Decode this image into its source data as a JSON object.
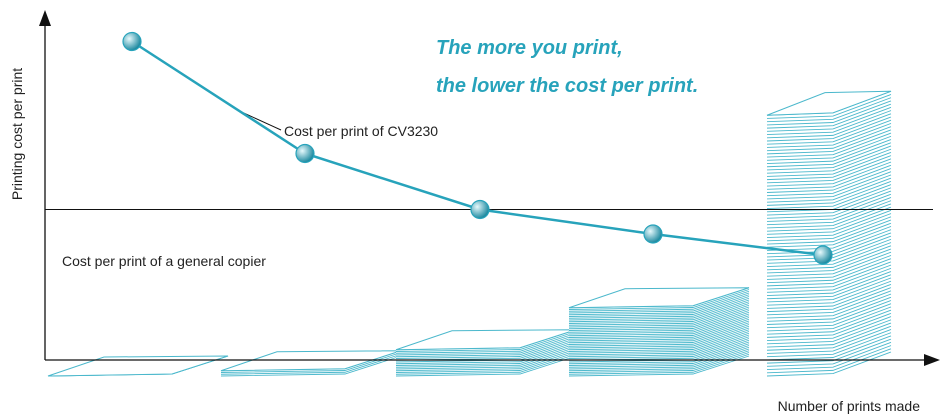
{
  "chart_data": {
    "type": "line",
    "ylabel": "Printing cost per print",
    "xlabel": "Number of prints made",
    "headline": [
      "The more you print,",
      "the lower the cost per print."
    ],
    "series": [
      {
        "name": "Cost per print of CV3230",
        "values": [
          9.1,
          5.9,
          4.3,
          3.6,
          3.0
        ]
      }
    ],
    "reference_line": {
      "label": "Cost per print of a general copier",
      "value": 4.3
    },
    "stacks": {
      "levels": [
        1,
        4,
        16,
        40,
        150
      ],
      "note": "paper stack grows with number of prints"
    },
    "ylim": [
      0,
      10
    ],
    "grid": false,
    "colors": {
      "accent": "#27a3bb",
      "stack": "#4bb8cc",
      "axis": "#111111",
      "marker_light": "#e6f9fc",
      "marker_dark": "#1f8aa0"
    }
  }
}
